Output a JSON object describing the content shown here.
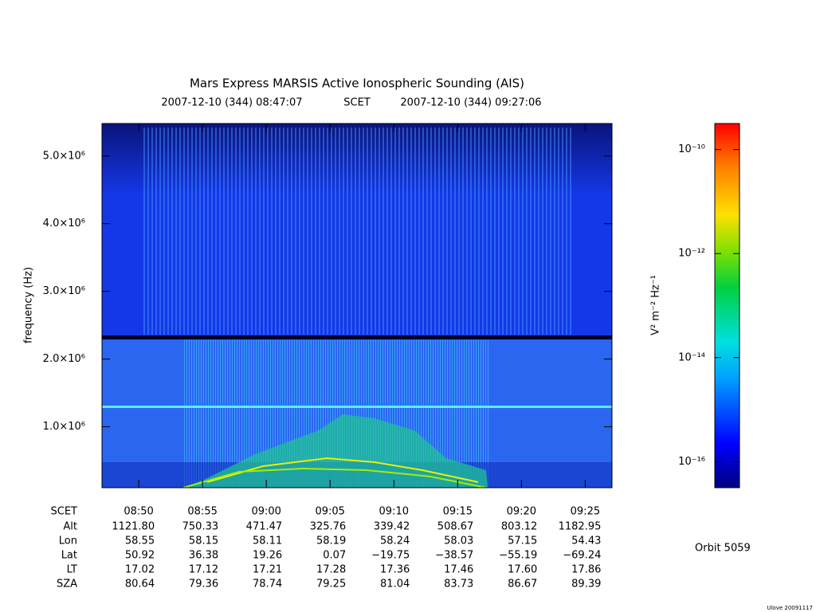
{
  "chart_data": {
    "type": "spectrogram",
    "title": "Mars Express MARSIS Active Ionospheric Sounding (AIS)",
    "time_start": "2007-12-10 (344) 08:47:07",
    "time_label": "SCET",
    "time_end": "2007-12-10 (344) 09:27:06",
    "ylabel": "frequency (Hz)",
    "xlabel": "SCET",
    "xlim": [
      527.12,
      567.1
    ],
    "xticks": [
      {
        "value": 530,
        "label": "08:50"
      },
      {
        "value": 535,
        "label": "08:55"
      },
      {
        "value": 540,
        "label": "09:00"
      },
      {
        "value": 545,
        "label": "09:05"
      },
      {
        "value": 550,
        "label": "09:10"
      },
      {
        "value": 555,
        "label": "09:15"
      },
      {
        "value": 560,
        "label": "09:20"
      },
      {
        "value": 565,
        "label": "09:25"
      }
    ],
    "ylim": [
      100000,
      5480000
    ],
    "yticks": [
      {
        "value": 1000000,
        "label": "1.0×10⁶"
      },
      {
        "value": 2000000,
        "label": "2.0×10⁶"
      },
      {
        "value": 3000000,
        "label": "3.0×10⁶"
      },
      {
        "value": 4000000,
        "label": "4.0×10⁶"
      },
      {
        "value": 5000000,
        "label": "5.0×10⁶"
      }
    ],
    "colorbar": {
      "label": "V² m⁻² Hz⁻¹",
      "log_scale": true,
      "zlim": [
        3.16e-17,
        3.16e-10
      ],
      "ticks": [
        {
          "value": 1e-10,
          "label": "10⁻¹⁰"
        },
        {
          "value": 1e-12,
          "label": "10⁻¹²"
        },
        {
          "value": 1e-14,
          "label": "10⁻¹⁴"
        },
        {
          "value": 1e-16,
          "label": "10⁻¹⁶"
        }
      ]
    },
    "ephemeris": [
      {
        "name": "Alt",
        "values": [
          "1121.80",
          "750.33",
          "471.47",
          "325.76",
          "339.42",
          "508.67",
          "803.12",
          "1182.95"
        ]
      },
      {
        "name": "Lon",
        "values": [
          "58.55",
          "58.15",
          "58.11",
          "58.19",
          "58.24",
          "58.03",
          "57.15",
          "54.43"
        ]
      },
      {
        "name": "Lat",
        "values": [
          "50.92",
          "36.38",
          "19.26",
          "0.07",
          "−19.75",
          "−38.57",
          "−55.19",
          "−69.24"
        ]
      },
      {
        "name": "LT",
        "values": [
          "17.02",
          "17.12",
          "17.21",
          "17.28",
          "17.36",
          "17.46",
          "17.60",
          "17.86"
        ]
      },
      {
        "name": "SZA",
        "values": [
          "80.64",
          "79.36",
          "78.74",
          "79.25",
          "81.04",
          "83.73",
          "86.67",
          "89.39"
        ]
      }
    ],
    "orbit": "Orbit 5059",
    "credit": "Ulove 20091117"
  }
}
